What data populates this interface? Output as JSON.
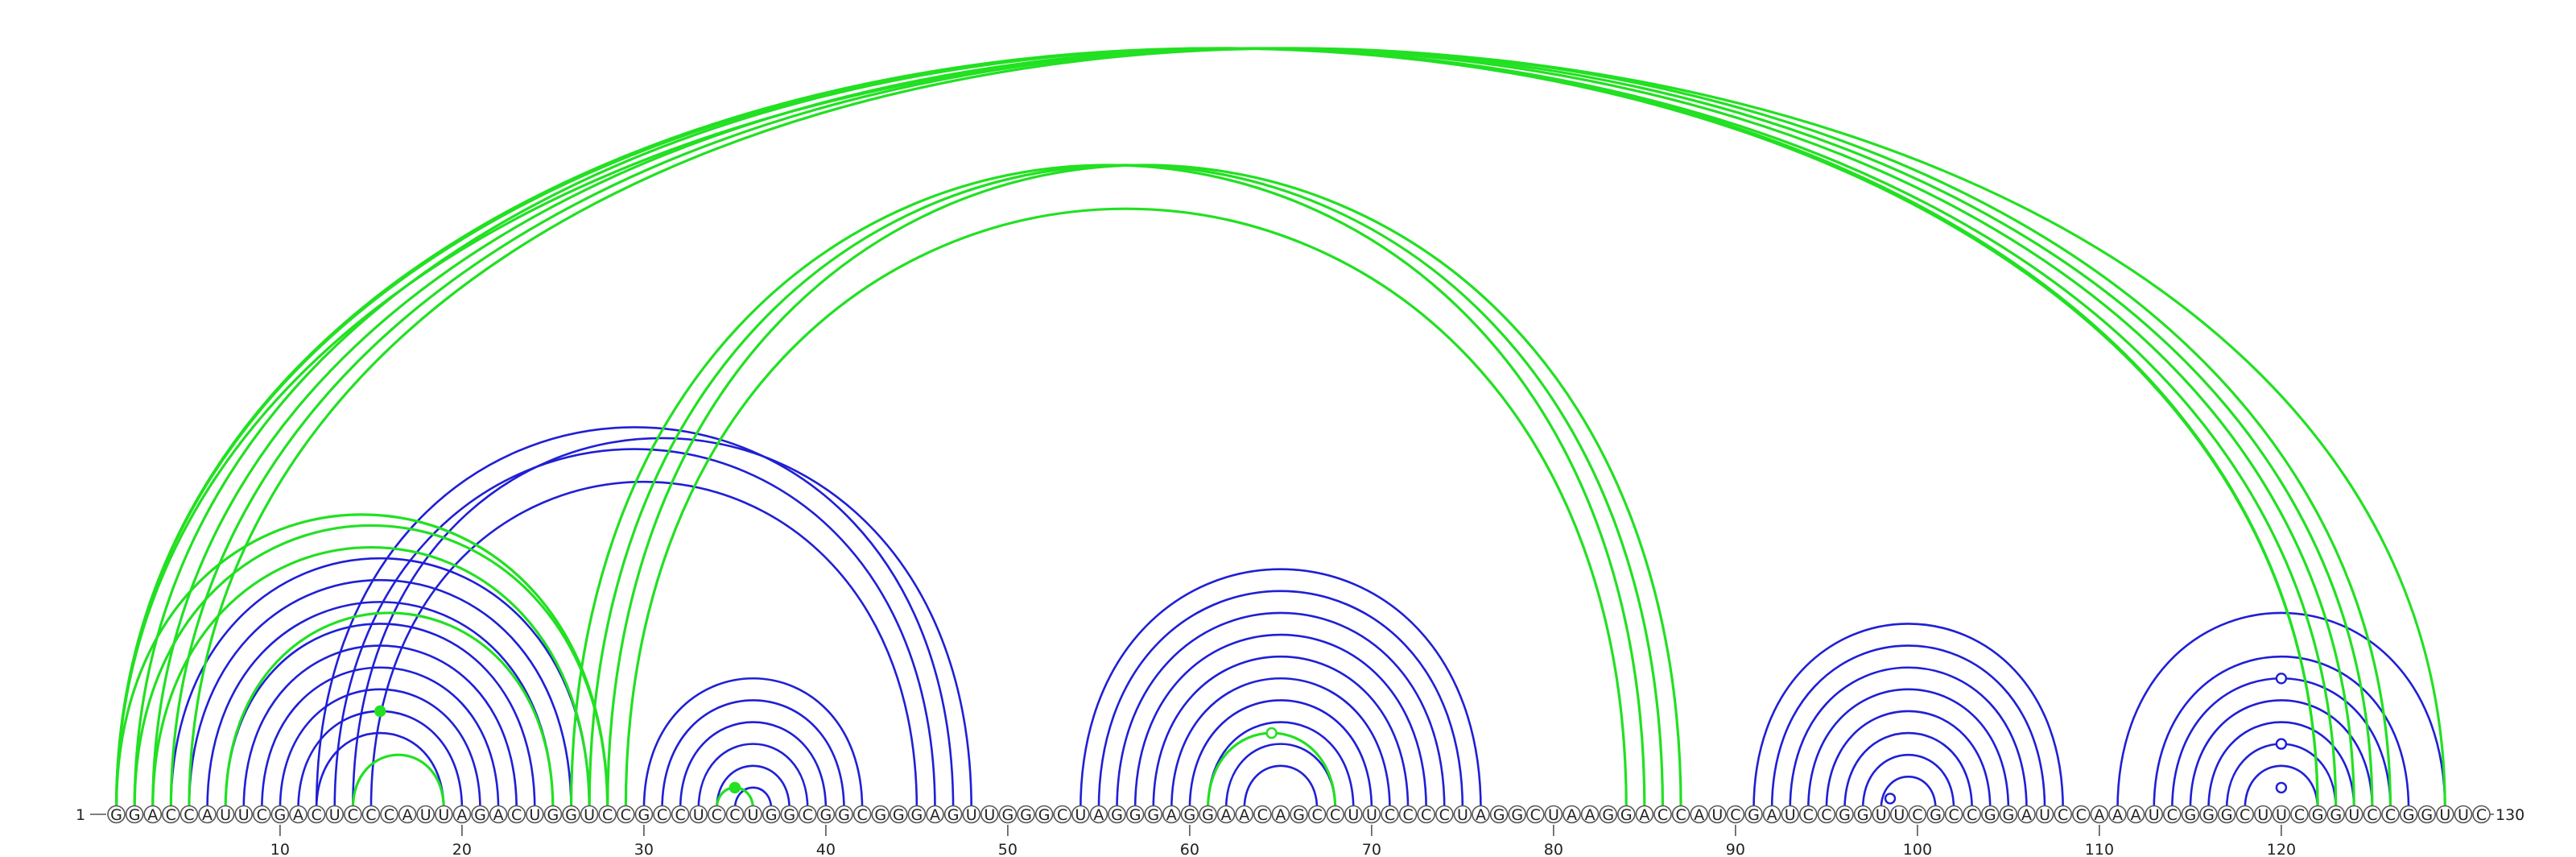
{
  "sequence": {
    "start_label": "1",
    "end_label": "130",
    "bases": "GGACCAUUCGACUCCCAUUAGACUGGUCCGCCUCCUGGCGGCGGGAGUUGGGCUAGGGAGGAACAGCCUUCCCCUAGGCUAAGGACCAUCGAUCCGGUUCGCCGGAUCCAAAUCGGGCUUCGGUCCGGUUC",
    "ticks": [
      10,
      20,
      30,
      40,
      50,
      60,
      70,
      80,
      90,
      100,
      110,
      120
    ]
  },
  "colors": {
    "blue": "#1f1fd6",
    "green": "#22e022",
    "circle_border": "#555555"
  },
  "arcs": {
    "blue": [
      [
        4,
        27
      ],
      [
        5,
        26
      ],
      [
        6,
        25
      ],
      [
        7,
        24
      ],
      [
        8,
        23
      ],
      [
        9,
        22
      ],
      [
        10,
        21
      ],
      [
        11,
        20
      ],
      [
        12,
        19
      ],
      [
        12,
        47
      ],
      [
        13,
        46
      ],
      [
        14,
        48
      ],
      [
        15,
        45
      ],
      [
        30,
        42
      ],
      [
        31,
        41
      ],
      [
        32,
        40
      ],
      [
        33,
        39
      ],
      [
        34,
        38
      ],
      [
        35,
        37
      ],
      [
        54,
        76
      ],
      [
        55,
        75
      ],
      [
        56,
        74
      ],
      [
        57,
        73
      ],
      [
        58,
        72
      ],
      [
        59,
        71
      ],
      [
        60,
        70
      ],
      [
        61,
        69
      ],
      [
        62,
        68
      ],
      [
        63,
        67
      ],
      [
        91,
        108
      ],
      [
        92,
        107
      ],
      [
        93,
        106
      ],
      [
        94,
        105
      ],
      [
        95,
        104
      ],
      [
        96,
        103
      ],
      [
        97,
        102
      ],
      [
        98,
        101
      ],
      [
        111,
        129
      ],
      [
        113,
        127
      ],
      [
        114,
        126
      ],
      [
        115,
        125
      ],
      [
        116,
        124
      ],
      [
        117,
        123
      ],
      [
        118,
        122
      ]
    ],
    "green": [
      [
        1,
        122
      ],
      [
        1,
        123
      ],
      [
        2,
        122
      ],
      [
        3,
        124
      ],
      [
        4,
        125
      ],
      [
        5,
        126
      ],
      [
        1,
        129
      ],
      [
        1,
        28
      ],
      [
        2,
        28
      ],
      [
        3,
        27
      ],
      [
        7,
        25
      ],
      [
        14,
        19
      ],
      [
        34,
        36
      ],
      [
        61,
        68
      ],
      [
        26,
        85
      ],
      [
        27,
        86
      ],
      [
        28,
        87
      ],
      [
        29,
        84
      ]
    ]
  },
  "markers": [
    {
      "pos": 15.5,
      "span": 9,
      "color": "green",
      "filled": true
    },
    {
      "pos": 35,
      "span": 2,
      "color": "green",
      "filled": true
    },
    {
      "pos": 64.5,
      "span": 7,
      "color": "green",
      "filled": false
    },
    {
      "pos": 98.5,
      "span": 1,
      "color": "blue",
      "filled": false
    },
    {
      "pos": 120,
      "span": 12,
      "color": "blue",
      "filled": false
    },
    {
      "pos": 120,
      "span": 6,
      "color": "blue",
      "filled": false
    },
    {
      "pos": 120,
      "span": 2,
      "color": "blue",
      "filled": false
    }
  ]
}
